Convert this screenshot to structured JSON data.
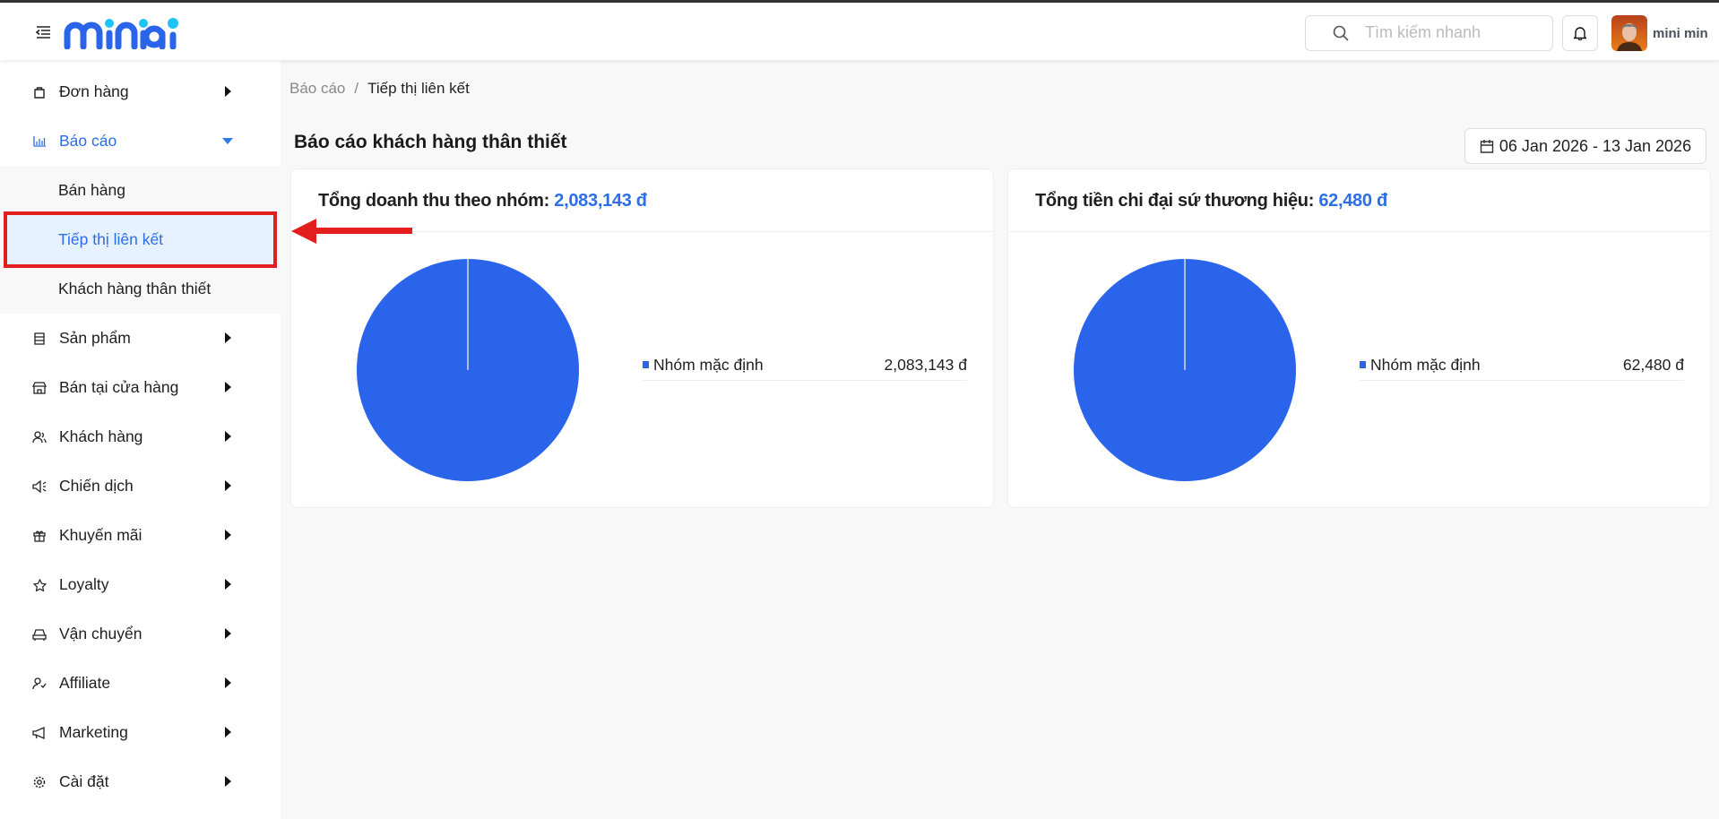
{
  "header": {
    "search_placeholder": "Tìm kiếm nhanh",
    "username": "mini min",
    "logo": "miniai"
  },
  "sidebar": {
    "items": [
      {
        "label": "Đơn hàng",
        "icon": "shopping-bag-icon"
      },
      {
        "label": "Báo cáo",
        "icon": "bar-chart-icon",
        "expanded": true,
        "children": [
          {
            "label": "Bán hàng"
          },
          {
            "label": "Tiếp thị liên kết",
            "selected": true
          },
          {
            "label": "Khách hàng thân thiết"
          }
        ]
      },
      {
        "label": "Sản phẩm",
        "icon": "product-icon"
      },
      {
        "label": "Bán tại cửa hàng",
        "icon": "store-icon"
      },
      {
        "label": "Khách hàng",
        "icon": "users-icon"
      },
      {
        "label": "Chiến dịch",
        "icon": "speaker-icon"
      },
      {
        "label": "Khuyến mãi",
        "icon": "gift-icon"
      },
      {
        "label": "Loyalty",
        "icon": "star-icon"
      },
      {
        "label": "Vận chuyển",
        "icon": "car-icon"
      },
      {
        "label": "Affiliate",
        "icon": "affiliate-icon"
      },
      {
        "label": "Marketing",
        "icon": "megaphone-icon"
      },
      {
        "label": "Cài đặt",
        "icon": "gear-icon"
      }
    ]
  },
  "breadcrumb": [
    "Báo cáo",
    "Tiếp thị liên kết"
  ],
  "page_title": "Báo cáo khách hàng thân thiết",
  "date_range": "06 Jan 2026 - 13 Jan 2026",
  "colors": {
    "accent": "#2d6ee8",
    "pie": "#2a64ea",
    "highlight": "#e31e1e"
  },
  "chart_data": [
    {
      "type": "pie",
      "title_label": "Tổng doanh thu theo nhóm:",
      "title_value": "2,083,143 đ",
      "categories": [
        "Nhóm mặc định"
      ],
      "values": [
        2083143
      ],
      "value_labels": [
        "2,083,143 đ"
      ]
    },
    {
      "type": "pie",
      "title_label": "Tổng tiền chi đại sứ thương hiệu:",
      "title_value": "62,480 đ",
      "categories": [
        "Nhóm mặc định"
      ],
      "values": [
        62480
      ],
      "value_labels": [
        "62,480 đ"
      ]
    }
  ]
}
